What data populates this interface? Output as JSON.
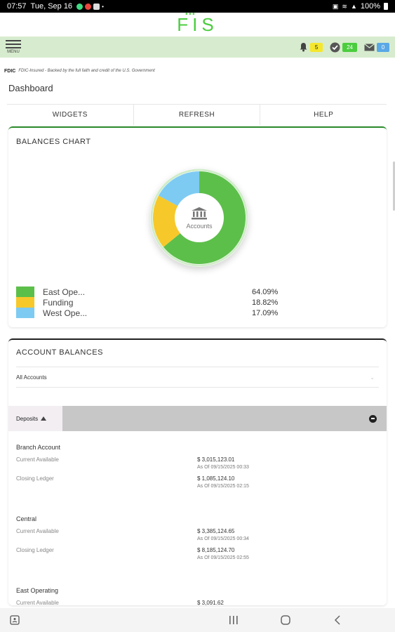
{
  "status_bar": {
    "time": "07:57",
    "date": "Tue, Sep 16",
    "battery": "100%"
  },
  "brand": {
    "logo": "FIS"
  },
  "nav": {
    "menu_label": "MENU",
    "notifications_count": "5",
    "tasks_count": "24",
    "messages_count": "0"
  },
  "fdic": {
    "tag": "FDIC",
    "text": "FDIC-Insured - Backed by the full faith and credit of the U.S. Government"
  },
  "page": {
    "title": "Dashboard"
  },
  "toolbar": {
    "widgets": "WIDGETS",
    "refresh": "REFRESH",
    "help": "HELP"
  },
  "balances_chart": {
    "title": "BALANCES CHART",
    "center_label": "Accounts",
    "legend": [
      {
        "name": "East Ope...",
        "pct": "64.09%"
      },
      {
        "name": "Funding",
        "pct": "18.82%"
      },
      {
        "name": "West Ope...",
        "pct": "17.09%"
      }
    ]
  },
  "chart_data": {
    "type": "pie",
    "categories": [
      "East Ope...",
      "Funding",
      "West Ope..."
    ],
    "values": [
      64.09,
      18.82,
      17.09
    ],
    "colors": [
      "#5cbf4a",
      "#f7c82a",
      "#7dcbf2"
    ],
    "title": "BALANCES CHART"
  },
  "account_balances": {
    "title": "ACCOUNT BALANCES",
    "filter_value": "All Accounts",
    "section_tab": "Deposits",
    "accounts": [
      {
        "name": "Branch Account",
        "current_label": "Current Available",
        "current_amount": "$ 3,015,123.01",
        "current_asof": "As Of 09/15/2025 00:33",
        "closing_label": "Closing Ledger",
        "closing_amount": "$ 1,085,124.10",
        "closing_asof": "As Of 09/15/2025 02:15"
      },
      {
        "name": "Central",
        "current_label": "Current Available",
        "current_amount": "$ 3,385,124.65",
        "current_asof": "As Of 09/15/2025 00:34",
        "closing_label": "Closing Ledger",
        "closing_amount": "$ 8,185,124.70",
        "closing_asof": "As Of 09/15/2025 02:55"
      },
      {
        "name": "East Operating",
        "current_label": "Current Available",
        "current_amount": "$ 3,091.62"
      }
    ]
  }
}
